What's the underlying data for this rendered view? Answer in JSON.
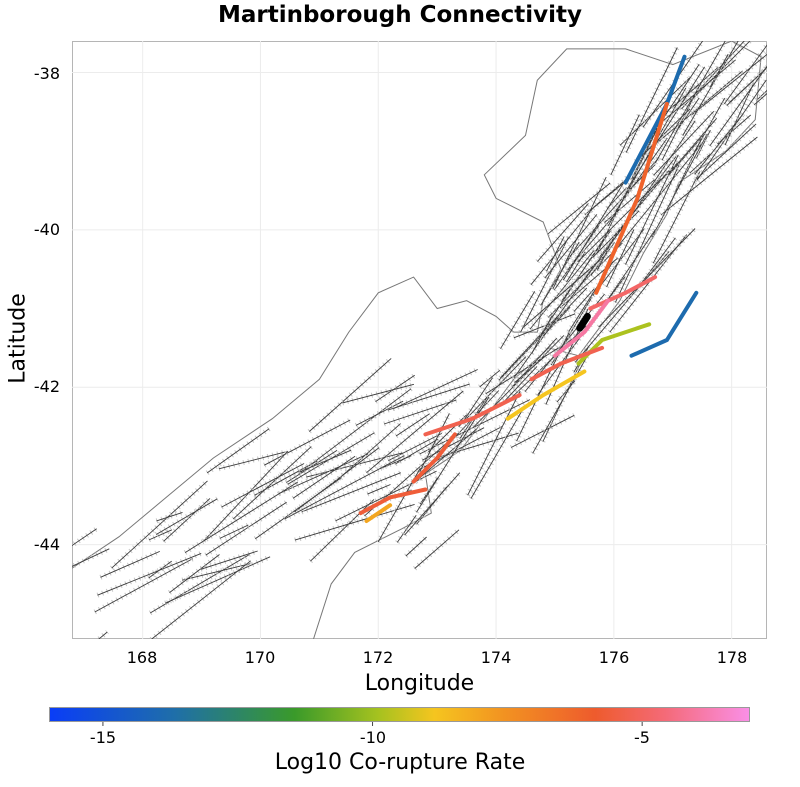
{
  "chart_data": {
    "type": "map",
    "title": "Martinborough Connectivity",
    "xlabel": "Longitude",
    "ylabel": "Latitude",
    "xlim": [
      166.8,
      178.6
    ],
    "ylim": [
      -45.2,
      -37.6
    ],
    "x_ticks": [
      168,
      170,
      172,
      174,
      176,
      178
    ],
    "y_ticks": [
      -38,
      -40,
      -42,
      -44
    ],
    "x_tick_labels": [
      "168",
      "170",
      "172",
      "174",
      "176",
      "178"
    ],
    "y_tick_labels": [
      "-38",
      "-40",
      "-42",
      "-44"
    ],
    "colorbar": {
      "label": "Log10 Co-rupture Rate",
      "range": [
        -16,
        -3
      ],
      "ticks": [
        -15,
        -10,
        -5
      ],
      "tick_labels": [
        "-15",
        "-10",
        "-5"
      ],
      "colormap": [
        "#0a3df7",
        "#1f6fa8",
        "#3a9a2a",
        "#a6c21f",
        "#f5c51f",
        "#f29221",
        "#ee5b2d",
        "#f46a78",
        "#fa8fe6"
      ]
    },
    "source_fault": {
      "name": "Martinborough",
      "lon": [
        175.42,
        175.55
      ],
      "lat": [
        -41.25,
        -41.1
      ]
    },
    "connected_faults": [
      {
        "lon": [
          176.2,
          176.9,
          177.2
        ],
        "lat": [
          -39.4,
          -38.4,
          -37.8
        ],
        "log_rate": -14.5
      },
      {
        "lon": [
          175.7,
          176.4,
          176.9
        ],
        "lat": [
          -40.8,
          -39.6,
          -38.4
        ],
        "log_rate": -6.5
      },
      {
        "lon": [
          175.4,
          175.8,
          176.6
        ],
        "lat": [
          -41.7,
          -41.4,
          -41.2
        ],
        "log_rate": -11
      },
      {
        "lon": [
          176.3,
          176.9,
          177.4
        ],
        "lat": [
          -41.6,
          -41.4,
          -40.8
        ],
        "log_rate": -14.5
      },
      {
        "lon": [
          174.6,
          175.1,
          175.8
        ],
        "lat": [
          -41.9,
          -41.7,
          -41.5
        ],
        "log_rate": -5.5
      },
      {
        "lon": [
          174.2,
          174.8,
          175.5
        ],
        "lat": [
          -42.4,
          -42.1,
          -41.8
        ],
        "log_rate": -9.5
      },
      {
        "lon": [
          172.8,
          173.6,
          174.4
        ],
        "lat": [
          -42.6,
          -42.4,
          -42.1
        ],
        "log_rate": -5.5
      },
      {
        "lon": [
          172.6,
          173.0,
          173.3
        ],
        "lat": [
          -43.2,
          -42.9,
          -42.6
        ],
        "log_rate": -6
      },
      {
        "lon": [
          171.7,
          172.2,
          172.8
        ],
        "lat": [
          -43.6,
          -43.4,
          -43.3
        ],
        "log_rate": -6
      },
      {
        "lon": [
          171.8,
          172.2
        ],
        "lat": [
          -43.7,
          -43.5
        ],
        "log_rate": -8.5
      },
      {
        "lon": [
          175.6,
          176.2,
          176.7
        ],
        "lat": [
          -41.0,
          -40.8,
          -40.6
        ],
        "log_rate": -5
      },
      {
        "lon": [
          175.0,
          175.5,
          175.9
        ],
        "lat": [
          -41.6,
          -41.3,
          -40.9
        ],
        "log_rate": -4
      }
    ]
  }
}
